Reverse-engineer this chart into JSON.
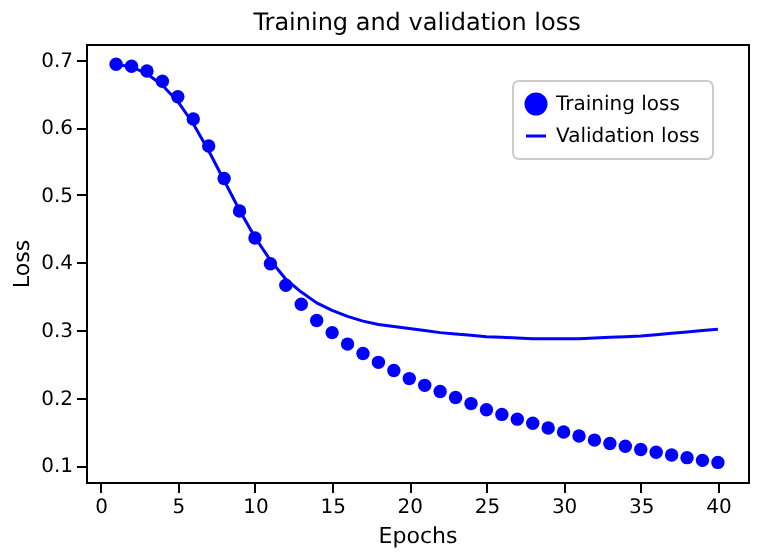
{
  "chart_data": {
    "type": "scatter",
    "title": "Training and validation loss",
    "xlabel": "Epochs",
    "ylabel": "Loss",
    "x": [
      1,
      2,
      3,
      4,
      5,
      6,
      7,
      8,
      9,
      10,
      11,
      12,
      13,
      14,
      15,
      16,
      17,
      18,
      19,
      20,
      21,
      22,
      23,
      24,
      25,
      26,
      27,
      28,
      29,
      30,
      31,
      32,
      33,
      34,
      35,
      36,
      37,
      38,
      39,
      40
    ],
    "series": [
      {
        "name": "Training loss",
        "marker": "circle",
        "color": "#0000ff",
        "values": [
          0.693,
          0.69,
          0.683,
          0.668,
          0.645,
          0.612,
          0.572,
          0.524,
          0.476,
          0.436,
          0.398,
          0.366,
          0.338,
          0.314,
          0.296,
          0.279,
          0.265,
          0.252,
          0.24,
          0.228,
          0.218,
          0.209,
          0.2,
          0.191,
          0.182,
          0.175,
          0.168,
          0.162,
          0.155,
          0.149,
          0.143,
          0.137,
          0.132,
          0.128,
          0.123,
          0.119,
          0.115,
          0.111,
          0.107,
          0.104
        ]
      },
      {
        "name": "Validation loss",
        "type": "line",
        "marker": "none",
        "line_style": "solid",
        "color": "#0000ff",
        "values": [
          0.693,
          0.689,
          0.679,
          0.662,
          0.638,
          0.605,
          0.565,
          0.521,
          0.477,
          0.437,
          0.403,
          0.375,
          0.356,
          0.34,
          0.329,
          0.32,
          0.313,
          0.308,
          0.305,
          0.302,
          0.299,
          0.296,
          0.294,
          0.292,
          0.29,
          0.289,
          0.288,
          0.287,
          0.287,
          0.287,
          0.287,
          0.288,
          0.289,
          0.29,
          0.291,
          0.293,
          0.295,
          0.297,
          0.299,
          0.301
        ]
      }
    ],
    "xlim": [
      -0.95,
      41.95
    ],
    "xticks": [
      0,
      5,
      10,
      15,
      20,
      25,
      30,
      35,
      40
    ],
    "ylim": [
      0.075,
      0.723
    ],
    "yticks": [
      0.1,
      0.2,
      0.3,
      0.4,
      0.5,
      0.6,
      0.7
    ],
    "grid": false,
    "legend": "top right"
  }
}
